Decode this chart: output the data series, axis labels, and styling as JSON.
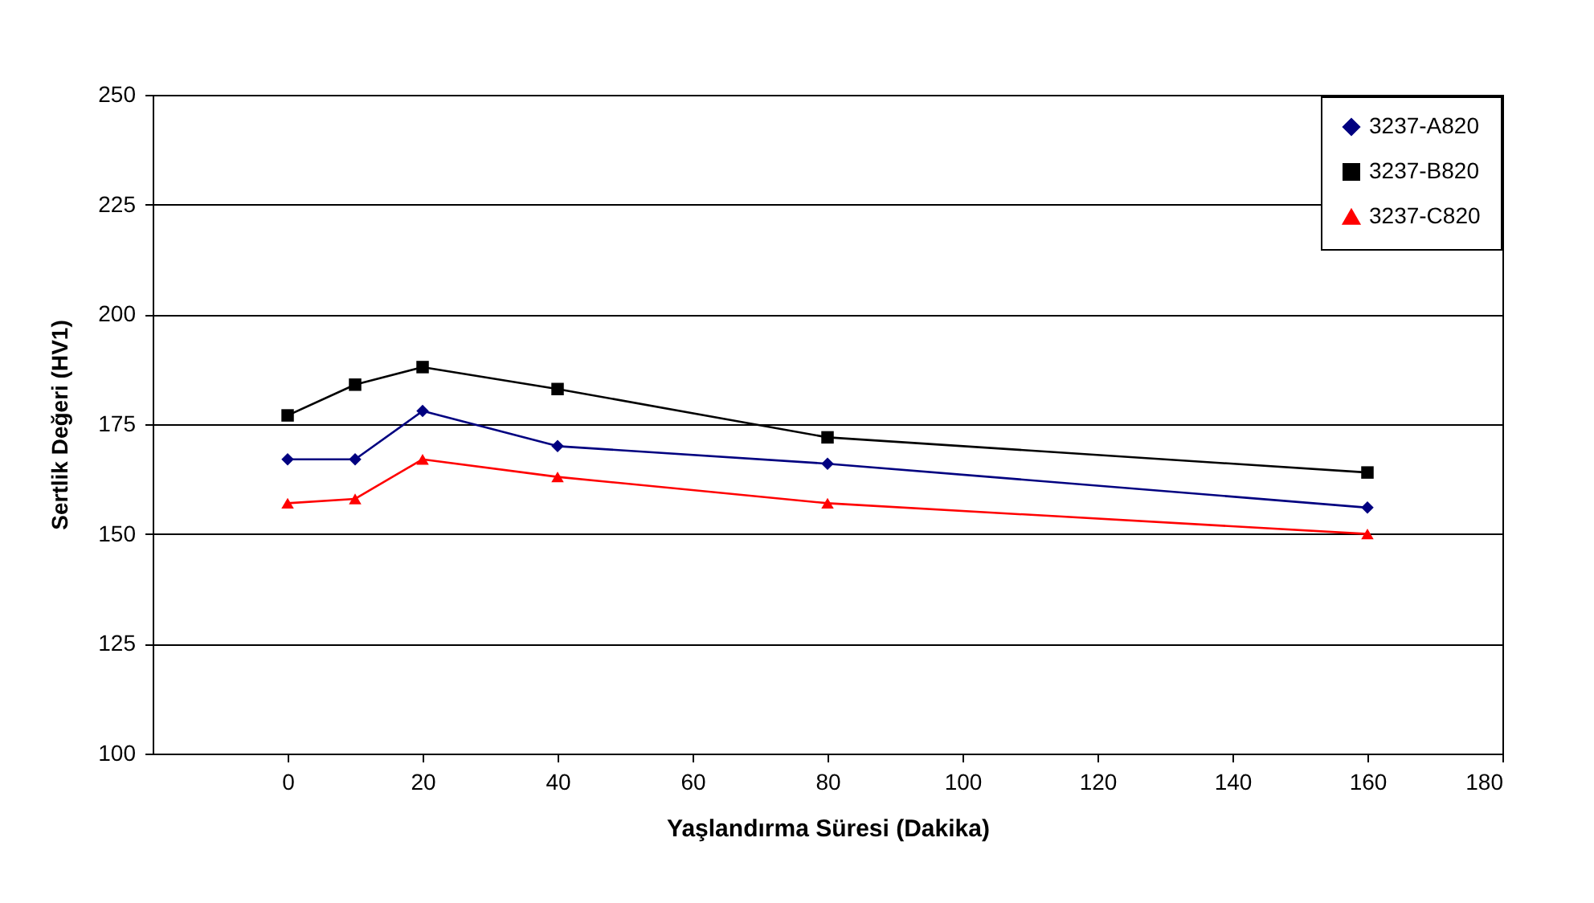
{
  "chart_data": {
    "type": "line",
    "xlabel": "Yaşlandırma Süresi (Dakika)",
    "ylabel": "Sertlik Değeri (HV1)",
    "x": [
      0,
      10,
      20,
      40,
      80,
      160
    ],
    "xlim": [
      -20,
      180
    ],
    "xticks": [
      0,
      20,
      40,
      60,
      80,
      100,
      120,
      140,
      160,
      180
    ],
    "ylim": [
      100,
      250
    ],
    "yticks": [
      100,
      125,
      150,
      175,
      200,
      225,
      250
    ],
    "grid": "y",
    "legend": "top right",
    "line_style": "solid",
    "series": [
      {
        "name": "3237-A820",
        "color": "#000080",
        "marker": "diamond",
        "values": [
          167,
          167,
          178,
          170,
          166,
          156
        ]
      },
      {
        "name": "3237-B820",
        "color": "#000000",
        "marker": "square",
        "values": [
          177,
          184,
          188,
          183,
          172,
          164
        ]
      },
      {
        "name": "3237-C820",
        "color": "#ff0000",
        "marker": "triangle",
        "values": [
          157,
          158,
          167,
          163,
          157,
          150
        ]
      }
    ]
  }
}
